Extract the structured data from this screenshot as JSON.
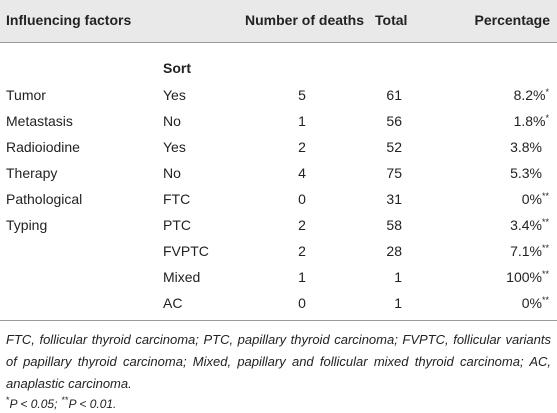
{
  "table": {
    "header": [
      "Influencing factors",
      "Number of deaths",
      "Total",
      "Percentage"
    ],
    "subheader": "Sort",
    "rows": [
      {
        "factor": "Tumor",
        "sort": "Yes",
        "deaths": 5,
        "total": 61,
        "percentage": "8.2%",
        "mark": "*"
      },
      {
        "factor": "Metastasis",
        "sort": "No",
        "deaths": 1,
        "total": 56,
        "percentage": "1.8%",
        "mark": "*"
      },
      {
        "factor": "Radioiodine",
        "sort": "Yes",
        "deaths": 2,
        "total": 52,
        "percentage": "3.8%"
      },
      {
        "factor": "Therapy",
        "sort": "No",
        "deaths": 4,
        "total": 75,
        "percentage": "5.3%"
      },
      {
        "factor": "Pathological",
        "sort": "FTC",
        "deaths": 0,
        "total": 31,
        "percentage": "0%",
        "mark": "**"
      },
      {
        "factor": "Typing",
        "sort": "PTC",
        "deaths": 2,
        "total": 58,
        "percentage": "3.4%",
        "mark": "**"
      },
      {
        "sort": "FVPTC",
        "deaths": 2,
        "total": 28,
        "percentage": "7.1%",
        "mark": "**"
      },
      {
        "sort": "Mixed",
        "deaths": 1,
        "total": 1,
        "percentage": "100%",
        "mark": "**"
      },
      {
        "sort": "AC",
        "deaths": 0,
        "total": 1,
        "percentage": "0%",
        "mark": "**"
      }
    ]
  },
  "footnote": {
    "abbreviations": "FTC, follicular thyroid carcinoma; PTC, papillary thyroid carcinoma; FVPTC, follicular variants of papillary thyroid carcinoma; Mixed, papillary and follicular mixed thyroid carcinoma; AC, anaplastic carcinoma.",
    "significance_marks": [
      "*",
      "**"
    ],
    "significance": [
      "P < 0.05;",
      "P < 0.01."
    ]
  }
}
